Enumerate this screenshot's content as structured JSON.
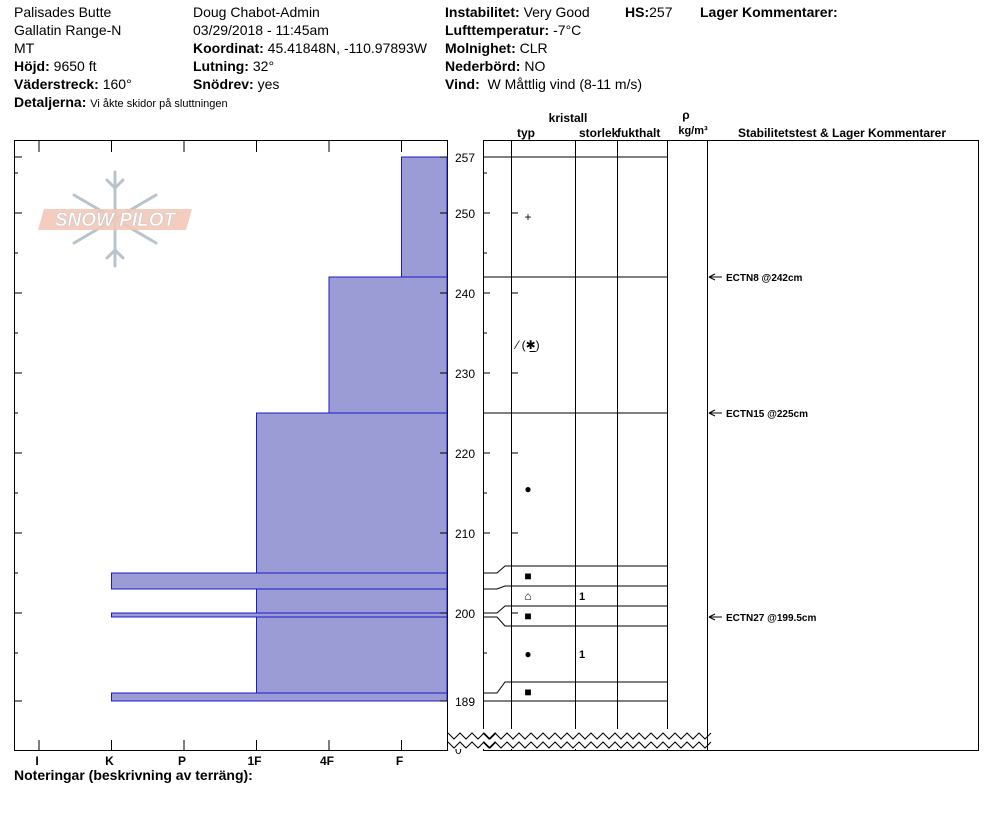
{
  "header": {
    "location": "Palisades Butte",
    "range": "Gallatin Range-N",
    "state": "MT",
    "elevation_label": "Höjd:",
    "elevation": "9650 ft",
    "aspect_label": "Väderstreck:",
    "aspect": "160°",
    "details_label": "Detaljerna:",
    "details": "Vi åkte skidor på sluttningen",
    "observer": "Doug Chabot-Admin",
    "datetime": "03/29/2018 - 11:45am",
    "coord_label": "Koordinat:",
    "coord": "45.41848N, -110.97893W",
    "slope_label": "Lutning:",
    "slope": "32°",
    "drift_label": "Snödrev:",
    "drift": "yes",
    "instability_label": "Instabilitet:",
    "instability": "Very Good",
    "hs_label": "HS:",
    "hs": "257",
    "airtemp_label": "Lufttemperatur:",
    "airtemp": "-7°C",
    "sky_label": "Molnighet:",
    "sky": "CLR",
    "precip_label": "Nederbörd:",
    "precip": "NO",
    "wind_label": "Vind:",
    "wind": "W Måttlig vind (8-11 m/s)",
    "layer_comments_label": "Lager Kommentarer:"
  },
  "logo_text": "SNOW PILOT",
  "footer": {
    "notes_label": "Noteringar (beskrivning av terräng):"
  },
  "table_headers": {
    "crystal": "kristall",
    "type": "typ",
    "size": "storlek",
    "moisture": "fukthalt",
    "rho": "ρ",
    "density_unit": "kg/m³",
    "stability": "Stabilitetstest & Lager Kommentarer"
  },
  "colors": {
    "hardness_fill": "#9b9bd6",
    "hardness_line": "#1b1bc8"
  },
  "chart_data": {
    "type": "snow-profile",
    "x_hardness_ticks": [
      "I",
      "K",
      "P",
      "1F",
      "4F",
      "F"
    ],
    "y_ticks": [
      257,
      250,
      240,
      230,
      220,
      210,
      200,
      189,
      0
    ],
    "hardness_layers": [
      {
        "bottom": 242,
        "top": 257,
        "hardness": "F"
      },
      {
        "bottom": 225,
        "top": 242,
        "hardness": "4F"
      },
      {
        "bottom": 205,
        "top": 225,
        "hardness": "1F"
      },
      {
        "bottom": 203,
        "top": 205,
        "hardness": "K"
      },
      {
        "bottom": 200,
        "top": 203,
        "hardness": "1F"
      },
      {
        "bottom": 199.5,
        "top": 200,
        "hardness": "K"
      },
      {
        "bottom": 190,
        "top": 199.5,
        "hardness": "1F"
      },
      {
        "bottom": 189,
        "top": 190,
        "hardness": "K"
      }
    ],
    "layers": [
      {
        "label": "+",
        "size": ""
      },
      {
        "label": "⁄ (✱̲)",
        "size": ""
      },
      {
        "label": "●",
        "size": ""
      },
      {
        "label": "■",
        "size": ""
      },
      {
        "label": "⌂",
        "size": "1"
      },
      {
        "label": "■",
        "size": ""
      },
      {
        "label": "●",
        "size": "1"
      },
      {
        "label": "■",
        "size": ""
      }
    ],
    "stability_tests": [
      {
        "label": "ECTN8 @242cm",
        "depth": 242
      },
      {
        "label": "ECTN15 @225cm",
        "depth": 225
      },
      {
        "label": "ECTN27 @199.5cm",
        "depth": 199.5
      }
    ]
  }
}
